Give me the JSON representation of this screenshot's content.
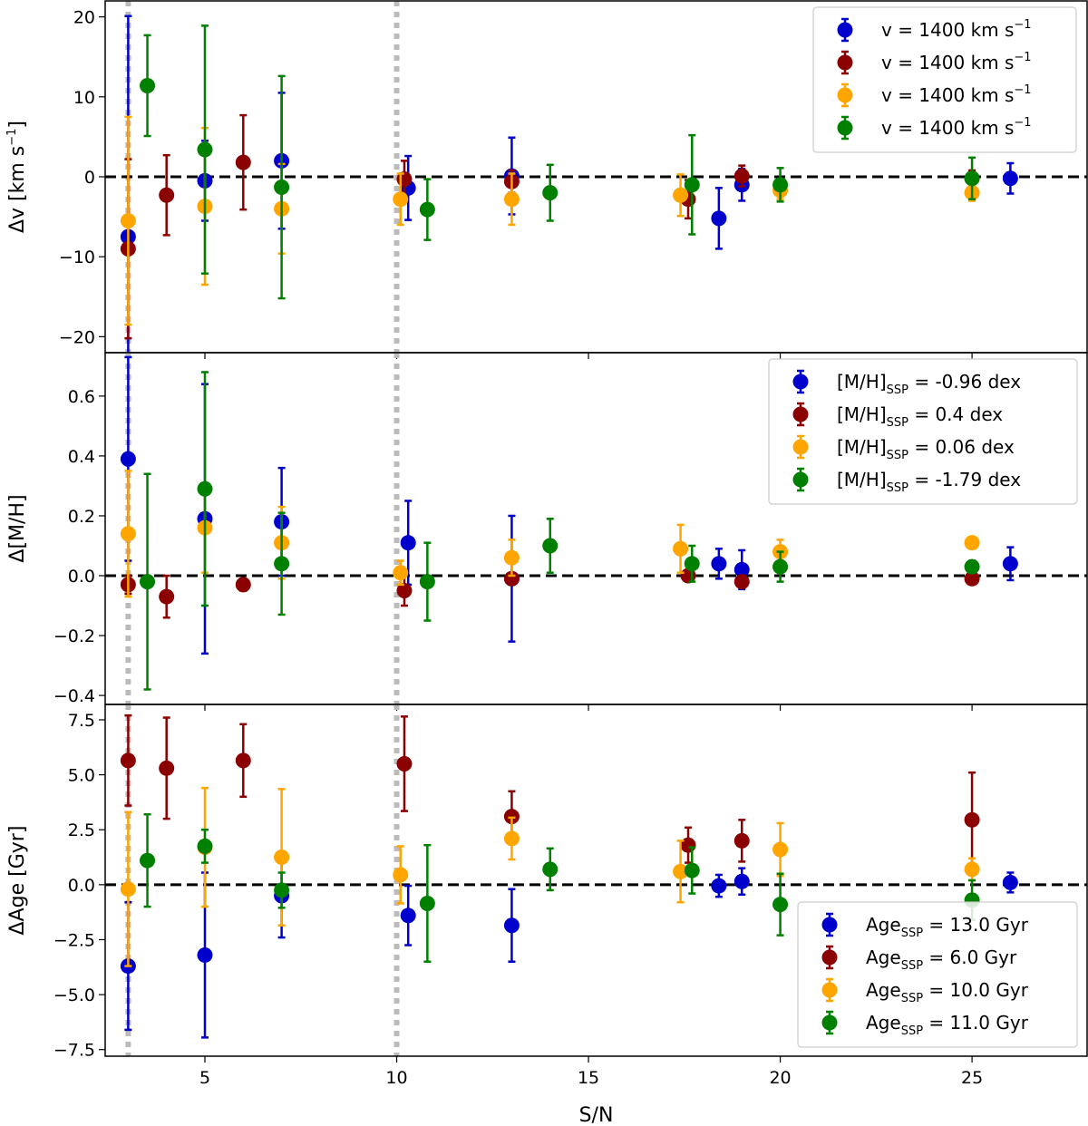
{
  "chart_data": {
    "type": "errorbar-scatter",
    "figure": "Three stacked panels sharing the S/N x-axis",
    "xlabel": "S/N",
    "xlim": [
      2.4,
      28.0
    ],
    "xticks": [
      5,
      10,
      15,
      20,
      25
    ],
    "reference_lines": {
      "vertical_dotted_x": [
        3,
        10
      ],
      "horizontal_dashed_y": 0
    },
    "colors": {
      "blue": "#0000cc",
      "darkred": "#8b0000",
      "orange": "#ffa500",
      "green": "#008000",
      "grid_line": "#bbbbbb"
    },
    "panels": [
      {
        "id": "velocity",
        "ylabel": "Δv [km s⁻¹]",
        "ylabel_main": "Δv [km s",
        "ylabel_sup": "−1",
        "ylabel_tail": "]",
        "ylim": [
          -22,
          22
        ],
        "yticks": [
          -20,
          -10,
          0,
          10,
          20
        ],
        "yticklabels": [
          "−20",
          "−10",
          "0",
          "10",
          "20"
        ],
        "legend_position": "top-right",
        "series": [
          {
            "name": "v = 1400 km s⁻¹",
            "label_main": "v = 1400 km s",
            "label_sup": "−1",
            "color_key": "blue",
            "points": [
              [
                3.0,
                -7.5,
                27.6
              ],
              [
                5.0,
                -0.5,
                5.0
              ],
              [
                7.0,
                2.0,
                8.5
              ],
              [
                10.3,
                -1.4,
                4.0
              ],
              [
                13.0,
                0.1,
                4.8
              ],
              [
                18.4,
                -5.2,
                3.8
              ],
              [
                19.0,
                -1.0,
                2.0
              ],
              [
                26.0,
                -0.2,
                1.9
              ]
            ]
          },
          {
            "name": "v = 1400 km s⁻¹",
            "label_main": "v = 1400 km s",
            "label_sup": "−1",
            "color_key": "darkred",
            "points": [
              [
                3.0,
                -9.0,
                11.2
              ],
              [
                4.0,
                -2.3,
                5.0
              ],
              [
                6.0,
                1.8,
                5.9
              ],
              [
                10.2,
                -0.3,
                2.3
              ],
              [
                13.0,
                -0.6,
                1.4
              ],
              [
                17.6,
                -2.8,
                2.4
              ],
              [
                19.0,
                0.1,
                1.3
              ],
              [
                25.0,
                -0.2,
                1.0
              ]
            ]
          },
          {
            "name": "v = 1400 km s⁻¹",
            "label_main": "v = 1400 km s",
            "label_sup": "−1",
            "color_key": "orange",
            "points": [
              [
                3.0,
                -5.5,
                13.0
              ],
              [
                5.0,
                -3.7,
                9.8
              ],
              [
                7.0,
                -4.0,
                5.6
              ],
              [
                10.1,
                -2.8,
                3.2
              ],
              [
                13.0,
                -2.8,
                3.2
              ],
              [
                17.4,
                -2.3,
                2.6
              ],
              [
                20.0,
                -1.7,
                1.1
              ],
              [
                25.0,
                -2.0,
                1.0
              ]
            ]
          },
          {
            "name": "v = 1400 km s⁻¹",
            "label_main": "v = 1400 km s",
            "label_sup": "−1",
            "color_key": "green",
            "points": [
              [
                3.5,
                11.4,
                6.3
              ],
              [
                5.0,
                3.4,
                15.5
              ],
              [
                7.0,
                -1.3,
                13.9
              ],
              [
                10.8,
                -4.1,
                3.8
              ],
              [
                14.0,
                -2.0,
                3.5
              ],
              [
                17.7,
                -1.0,
                6.2
              ],
              [
                20.0,
                -1.0,
                2.1
              ],
              [
                25.0,
                -0.2,
                2.6
              ]
            ]
          }
        ]
      },
      {
        "id": "metallicity",
        "ylabel": "Δ[M/H]",
        "ylim": [
          -0.43,
          0.745
        ],
        "yticks": [
          -0.4,
          -0.2,
          0.0,
          0.2,
          0.4,
          0.6
        ],
        "yticklabels": [
          "−0.4",
          "−0.2",
          "0.0",
          "0.2",
          "0.4",
          "0.6"
        ],
        "legend_position": "top-right",
        "series": [
          {
            "name": "[M/H]SSP = -0.96 dex",
            "label_main": "[M/H]",
            "label_sub": "SSP",
            "label_tail": " = -0.96 dex",
            "color_key": "blue",
            "points": [
              [
                3.0,
                0.39,
                0.34
              ],
              [
                5.0,
                0.19,
                0.45
              ],
              [
                7.0,
                0.18,
                0.18
              ],
              [
                10.3,
                0.11,
                0.14
              ],
              [
                13.0,
                -0.01,
                0.21
              ],
              [
                18.4,
                0.04,
                0.05
              ],
              [
                19.0,
                0.02,
                0.065
              ],
              [
                26.0,
                0.04,
                0.055
              ]
            ]
          },
          {
            "name": "[M/H]SSP = 0.4 dex",
            "label_main": "[M/H]",
            "label_sub": "SSP",
            "label_tail": " = 0.4 dex",
            "color_key": "darkred",
            "points": [
              [
                3.0,
                -0.03,
                0.03
              ],
              [
                4.0,
                -0.07,
                0.07
              ],
              [
                6.0,
                -0.03,
                0.02
              ],
              [
                10.2,
                -0.05,
                0.05
              ],
              [
                13.0,
                -0.01,
                0.01
              ],
              [
                17.6,
                0.0,
                0.01
              ],
              [
                19.0,
                -0.02,
                0.01
              ],
              [
                25.0,
                -0.01,
                0.01
              ]
            ]
          },
          {
            "name": "[M/H]SSP = 0.06 dex",
            "label_main": "[M/H]",
            "label_sub": "SSP",
            "label_tail": " = 0.06 dex",
            "color_key": "orange",
            "points": [
              [
                3.0,
                0.14,
                0.21
              ],
              [
                5.0,
                0.16,
                0.15
              ],
              [
                7.0,
                0.11,
                0.12
              ],
              [
                10.1,
                0.01,
                0.04
              ],
              [
                13.0,
                0.06,
                0.06
              ],
              [
                17.4,
                0.09,
                0.08
              ],
              [
                20.0,
                0.08,
                0.04
              ],
              [
                25.0,
                0.11,
                0.01
              ]
            ]
          },
          {
            "name": "[M/H]SSP = -1.79 dex",
            "label_main": "[M/H]",
            "label_sub": "SSP",
            "label_tail": " = -1.79 dex",
            "color_key": "green",
            "points": [
              [
                3.5,
                -0.02,
                0.36
              ],
              [
                5.0,
                0.29,
                0.39
              ],
              [
                7.0,
                0.04,
                0.17
              ],
              [
                10.8,
                -0.02,
                0.13
              ],
              [
                14.0,
                0.1,
                0.09
              ],
              [
                17.7,
                0.04,
                0.06
              ],
              [
                20.0,
                0.03,
                0.05
              ],
              [
                25.0,
                0.03,
                0.02
              ]
            ]
          }
        ]
      },
      {
        "id": "age",
        "ylabel": "ΔAge [Gyr]",
        "ylim": [
          -7.8,
          8.2
        ],
        "yticks": [
          -7.5,
          -5.0,
          -2.5,
          0.0,
          2.5,
          5.0,
          7.5
        ],
        "yticklabels": [
          "−7.5",
          "−5.0",
          "−2.5",
          "0.0",
          "2.5",
          "5.0",
          "7.5"
        ],
        "legend_position": "bottom-right",
        "series": [
          {
            "name": "AgeSSP = 13.0 Gyr",
            "label_main": "Age",
            "label_sub": "SSP",
            "label_tail": " = 13.0 Gyr",
            "color_key": "blue",
            "points": [
              [
                3.0,
                -3.7,
                2.9
              ],
              [
                5.0,
                -3.2,
                3.75
              ],
              [
                7.0,
                -0.5,
                1.9
              ],
              [
                10.3,
                -1.4,
                1.35
              ],
              [
                13.0,
                -1.85,
                1.65
              ],
              [
                18.4,
                -0.05,
                0.5
              ],
              [
                19.0,
                0.15,
                0.6
              ],
              [
                26.0,
                0.1,
                0.45
              ]
            ]
          },
          {
            "name": "AgeSSP = 6.0 Gyr",
            "label_main": "Age",
            "label_sub": "SSP",
            "label_tail": " = 6.0 Gyr",
            "color_key": "darkred",
            "points": [
              [
                3.0,
                5.65,
                2.05
              ],
              [
                4.0,
                5.3,
                2.3
              ],
              [
                6.0,
                5.65,
                1.65
              ],
              [
                10.2,
                5.5,
                2.15
              ],
              [
                13.0,
                3.1,
                1.15
              ],
              [
                17.6,
                1.8,
                0.8
              ],
              [
                19.0,
                2.0,
                0.95
              ],
              [
                25.0,
                2.95,
                2.15
              ]
            ]
          },
          {
            "name": "AgeSSP = 10.0 Gyr",
            "label_main": "Age",
            "label_sub": "SSP",
            "label_tail": " = 10.0 Gyr",
            "color_key": "orange",
            "points": [
              [
                3.0,
                -0.2,
                3.5
              ],
              [
                5.0,
                1.7,
                2.7
              ],
              [
                7.0,
                1.25,
                3.1
              ],
              [
                10.1,
                0.45,
                1.3
              ],
              [
                13.0,
                2.1,
                0.95
              ],
              [
                17.4,
                0.6,
                1.4
              ],
              [
                20.0,
                1.6,
                1.2
              ],
              [
                25.0,
                0.7,
                0.5
              ]
            ]
          },
          {
            "name": "AgeSSP = 11.0 Gyr",
            "label_main": "Age",
            "label_sub": "SSP",
            "label_tail": " = 11.0 Gyr",
            "color_key": "green",
            "points": [
              [
                3.5,
                1.1,
                2.1
              ],
              [
                5.0,
                1.75,
                0.75
              ],
              [
                7.0,
                -0.25,
                0.8
              ],
              [
                10.8,
                -0.85,
                2.65
              ],
              [
                14.0,
                0.7,
                0.95
              ],
              [
                17.7,
                0.65,
                1.05
              ],
              [
                20.0,
                -0.9,
                1.4
              ],
              [
                25.0,
                -0.7,
                0.9
              ]
            ]
          }
        ]
      }
    ]
  }
}
